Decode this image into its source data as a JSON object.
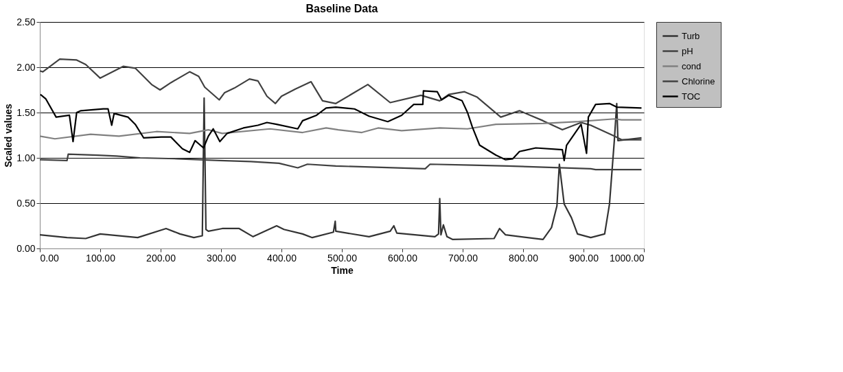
{
  "chart_data": {
    "type": "line",
    "title": "Baseline Data",
    "xlabel": "Time",
    "ylabel": "Scaled values",
    "xlim": [
      0,
      1000
    ],
    "ylim": [
      0,
      2.5
    ],
    "xticks": [
      {
        "value": 0,
        "label": "0.00"
      },
      {
        "value": 100,
        "label": "100.00"
      },
      {
        "value": 200,
        "label": "200.00"
      },
      {
        "value": 300,
        "label": "300.00"
      },
      {
        "value": 400,
        "label": "400.00"
      },
      {
        "value": 500,
        "label": "500.00"
      },
      {
        "value": 600,
        "label": "600.00"
      },
      {
        "value": 700,
        "label": "700.00"
      },
      {
        "value": 800,
        "label": "800.00"
      },
      {
        "value": 900,
        "label": "900.00"
      },
      {
        "value": 1000,
        "label": "1000.00"
      }
    ],
    "yticks": [
      {
        "value": 0,
        "label": "0.00"
      },
      {
        "value": 0.5,
        "label": "0.50"
      },
      {
        "value": 1,
        "label": "1.00"
      },
      {
        "value": 1.5,
        "label": "1.50"
      },
      {
        "value": 2,
        "label": "2.00"
      },
      {
        "value": 2.5,
        "label": "2.50"
      }
    ],
    "grid": "y",
    "legend": "right",
    "marker": "none",
    "series": [
      {
        "name": "Turb",
        "color": "#333333",
        "x": [
          0,
          45,
          76,
          100,
          162,
          209,
          232,
          255,
          269,
          272,
          275,
          279,
          302,
          330,
          353,
          392,
          404,
          435,
          451,
          486,
          489,
          490,
          545,
          580,
          586,
          591,
          654,
          660,
          662,
          664,
          668,
          674,
          683,
          752,
          761,
          771,
          833,
          847,
          856,
          860,
          868,
          880,
          890,
          912,
          935,
          943,
          951,
          955,
          957,
          996
        ],
        "values": [
          0.15,
          0.12,
          0.11,
          0.16,
          0.12,
          0.22,
          0.16,
          0.12,
          0.14,
          1.66,
          0.21,
          0.19,
          0.22,
          0.22,
          0.13,
          0.25,
          0.21,
          0.16,
          0.12,
          0.18,
          0.3,
          0.19,
          0.13,
          0.19,
          0.25,
          0.17,
          0.13,
          0.16,
          0.55,
          0.15,
          0.26,
          0.13,
          0.1,
          0.11,
          0.22,
          0.15,
          0.1,
          0.23,
          0.47,
          0.93,
          0.49,
          0.34,
          0.16,
          0.12,
          0.16,
          0.49,
          1.19,
          1.6,
          1.19,
          1.22
        ]
      },
      {
        "name": "pH",
        "color": "#404040",
        "x": [
          0,
          5,
          33,
          61,
          76,
          100,
          138,
          158,
          185,
          199,
          217,
          248,
          263,
          273,
          297,
          306,
          322,
          347,
          361,
          376,
          390,
          400,
          423,
          449,
          468,
          490,
          543,
          580,
          631,
          662,
          677,
          703,
          724,
          763,
          794,
          833,
          865,
          896,
          912,
          951,
          963,
          996
        ],
        "values": [
          1.96,
          1.95,
          2.09,
          2.08,
          2.03,
          1.88,
          2.01,
          1.99,
          1.81,
          1.75,
          1.83,
          1.95,
          1.9,
          1.78,
          1.64,
          1.72,
          1.77,
          1.87,
          1.85,
          1.68,
          1.6,
          1.68,
          1.76,
          1.84,
          1.63,
          1.6,
          1.81,
          1.61,
          1.69,
          1.63,
          1.7,
          1.73,
          1.67,
          1.45,
          1.52,
          1.41,
          1.31,
          1.39,
          1.36,
          1.24,
          1.2,
          1.2
        ]
      },
      {
        "name": "cond",
        "color": "#808080",
        "x": [
          0,
          25,
          84,
          131,
          193,
          248,
          279,
          302,
          381,
          435,
          474,
          494,
          533,
          560,
          599,
          662,
          708,
          755,
          833,
          892,
          951,
          963,
          996
        ],
        "values": [
          1.24,
          1.21,
          1.26,
          1.24,
          1.29,
          1.27,
          1.31,
          1.27,
          1.32,
          1.28,
          1.33,
          1.31,
          1.28,
          1.33,
          1.3,
          1.33,
          1.32,
          1.37,
          1.38,
          1.4,
          1.43,
          1.42,
          1.42
        ]
      },
      {
        "name": "Chlorine",
        "color": "#404040",
        "x": [
          0,
          45,
          47,
          96,
          127,
          166,
          228,
          298,
          349,
          396,
          427,
          443,
          490,
          638,
          646,
          716,
          775,
          912,
          920,
          996
        ],
        "values": [
          0.98,
          0.97,
          1.04,
          1.03,
          1.02,
          1.0,
          0.99,
          0.97,
          0.96,
          0.94,
          0.89,
          0.93,
          0.91,
          0.88,
          0.93,
          0.92,
          0.91,
          0.88,
          0.87,
          0.87
        ]
      },
      {
        "name": "TOC",
        "color": "#000000",
        "x": [
          1,
          10,
          27,
          49,
          55,
          61,
          68,
          105,
          113,
          119,
          123,
          146,
          158,
          172,
          201,
          217,
          236,
          248,
          257,
          271,
          279,
          287,
          298,
          310,
          337,
          361,
          376,
          392,
          427,
          435,
          458,
          474,
          490,
          521,
          545,
          576,
          599,
          619,
          634,
          635,
          658,
          665,
          677,
          699,
          708,
          716,
          728,
          755,
          771,
          783,
          794,
          821,
          865,
          868,
          872,
          896,
          905,
          908,
          920,
          943,
          955,
          996
        ],
        "values": [
          1.7,
          1.65,
          1.45,
          1.47,
          1.18,
          1.5,
          1.52,
          1.54,
          1.54,
          1.36,
          1.49,
          1.45,
          1.37,
          1.22,
          1.23,
          1.23,
          1.1,
          1.06,
          1.19,
          1.11,
          1.24,
          1.32,
          1.18,
          1.27,
          1.33,
          1.36,
          1.39,
          1.37,
          1.32,
          1.41,
          1.47,
          1.55,
          1.56,
          1.54,
          1.46,
          1.4,
          1.47,
          1.59,
          1.59,
          1.74,
          1.73,
          1.64,
          1.69,
          1.63,
          1.5,
          1.34,
          1.14,
          1.03,
          0.98,
          0.99,
          1.07,
          1.11,
          1.09,
          0.97,
          1.14,
          1.37,
          1.05,
          1.45,
          1.59,
          1.6,
          1.56,
          1.55
        ]
      }
    ]
  }
}
